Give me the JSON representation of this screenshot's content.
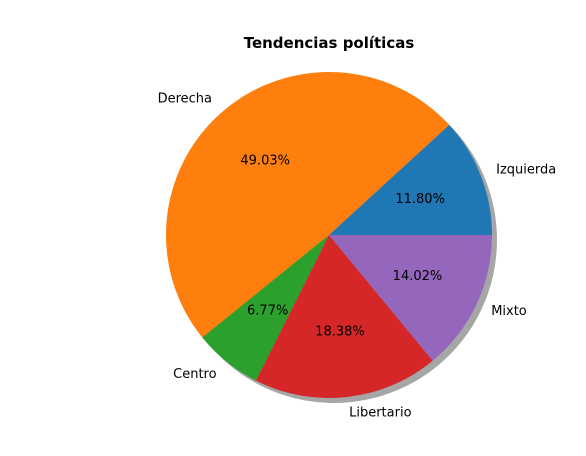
{
  "chart_data": {
    "type": "pie",
    "title": "Tendencias políticas",
    "shadow": true,
    "start_angle_deg": 0,
    "direction": "counterclockwise",
    "slices": [
      {
        "label": "Izquierda",
        "value": 11.8,
        "pct_label": "11.80%",
        "color": "#1f77b4"
      },
      {
        "label": "Derecha",
        "value": 49.03,
        "pct_label": "49.03%",
        "color": "#ff7f0e"
      },
      {
        "label": "Centro",
        "value": 6.77,
        "pct_label": "6.77%",
        "color": "#2ca02c"
      },
      {
        "label": "Libertario",
        "value": 18.38,
        "pct_label": "18.38%",
        "color": "#d62728"
      },
      {
        "label": "Mixto",
        "value": 14.02,
        "pct_label": "14.02%",
        "color": "#9467bd"
      }
    ]
  }
}
